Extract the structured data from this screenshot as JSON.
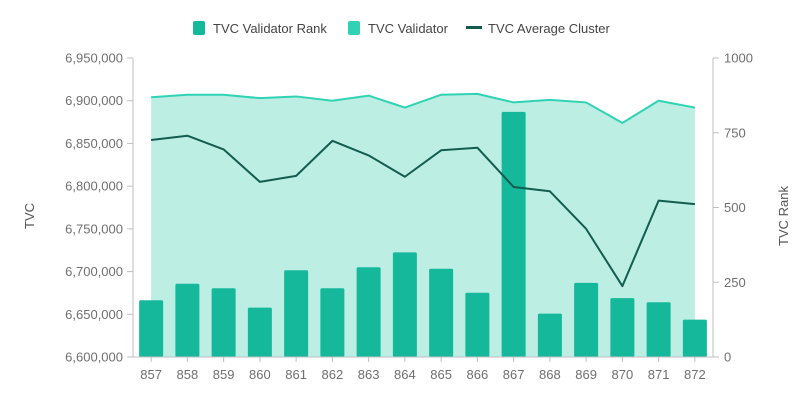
{
  "chart_data": {
    "type": "bar",
    "categories": [
      "857",
      "858",
      "859",
      "860",
      "861",
      "862",
      "863",
      "864",
      "865",
      "866",
      "867",
      "868",
      "869",
      "870",
      "871",
      "872"
    ],
    "ylabel_left": "TVC",
    "ylabel_right": "TVC Rank",
    "ylim_left": [
      6600000,
      6950000
    ],
    "ylim_right": [
      0,
      1000
    ],
    "yticks_left": [
      "6,600,000",
      "6,650,000",
      "6,700,000",
      "6,750,000",
      "6,800,000",
      "6,850,000",
      "6,900,000",
      "6,950,000"
    ],
    "yticks_left_values": [
      6600000,
      6650000,
      6700000,
      6750000,
      6800000,
      6850000,
      6900000,
      6950000
    ],
    "yticks_right": [
      "0",
      "250",
      "500",
      "750",
      "1000"
    ],
    "yticks_right_values": [
      0,
      250,
      500,
      750,
      1000
    ],
    "legend_position": "top-center",
    "series": [
      {
        "name": "TVC Validator Rank",
        "type": "bar",
        "axis": "right",
        "color": "#16b89b",
        "values": [
          190,
          245,
          230,
          165,
          290,
          230,
          300,
          350,
          295,
          215,
          820,
          145,
          248,
          197,
          183,
          125
        ]
      },
      {
        "name": "TVC Validator",
        "type": "area",
        "axis": "left",
        "color": "#2fd3b3",
        "fill": "#bdeee4",
        "values": [
          6904000,
          6907000,
          6907000,
          6903000,
          6905000,
          6900000,
          6906000,
          6892000,
          6907000,
          6908000,
          6898000,
          6901000,
          6898000,
          6874000,
          6900000,
          6892000
        ]
      },
      {
        "name": "TVC Average Cluster",
        "type": "line",
        "axis": "left",
        "color": "#125d4f",
        "values": [
          6854000,
          6859000,
          6843000,
          6805000,
          6812000,
          6853000,
          6836000,
          6811000,
          6842000,
          6845000,
          6799000,
          6794000,
          6750000,
          6683000,
          6783000,
          6779000
        ]
      }
    ]
  }
}
